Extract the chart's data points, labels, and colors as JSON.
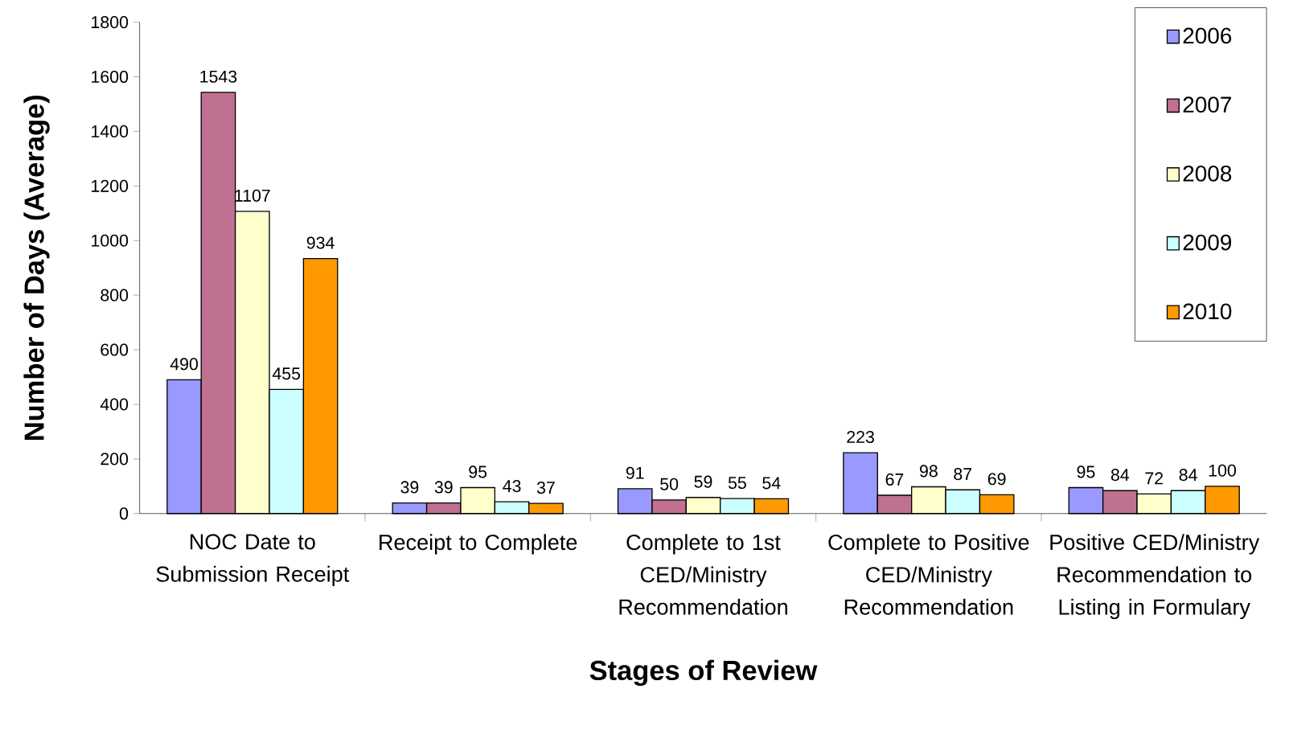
{
  "chart_data": {
    "type": "bar",
    "xlabel": "Stages of Review",
    "ylabel": "Number of Days (Average)",
    "categories": [
      "NOC Date to Submission Receipt",
      "Receipt to Complete",
      "Complete to 1st CED/Ministry Recommendation",
      "Complete to Positive CED/Ministry Recommendation",
      "Positive CED/Ministry Recommendation to Listing in Formulary"
    ],
    "series": [
      {
        "name": "2006",
        "color": "#9999ff",
        "values": [
          490,
          39,
          91,
          223,
          95
        ]
      },
      {
        "name": "2007",
        "color": "#c07090",
        "values": [
          1543,
          39,
          50,
          67,
          84
        ]
      },
      {
        "name": "2008",
        "color": "#ffffcc",
        "values": [
          1107,
          95,
          59,
          98,
          72
        ]
      },
      {
        "name": "2009",
        "color": "#ccffff",
        "values": [
          455,
          43,
          55,
          87,
          84
        ]
      },
      {
        "name": "2010",
        "color": "#ff9900",
        "values": [
          934,
          37,
          54,
          69,
          100
        ]
      }
    ],
    "ylim": [
      0,
      1800
    ],
    "yticks": [
      0,
      200,
      400,
      600,
      800,
      1000,
      1200,
      1400,
      1600,
      1800
    ],
    "legend": "top right",
    "data_labels": true
  }
}
